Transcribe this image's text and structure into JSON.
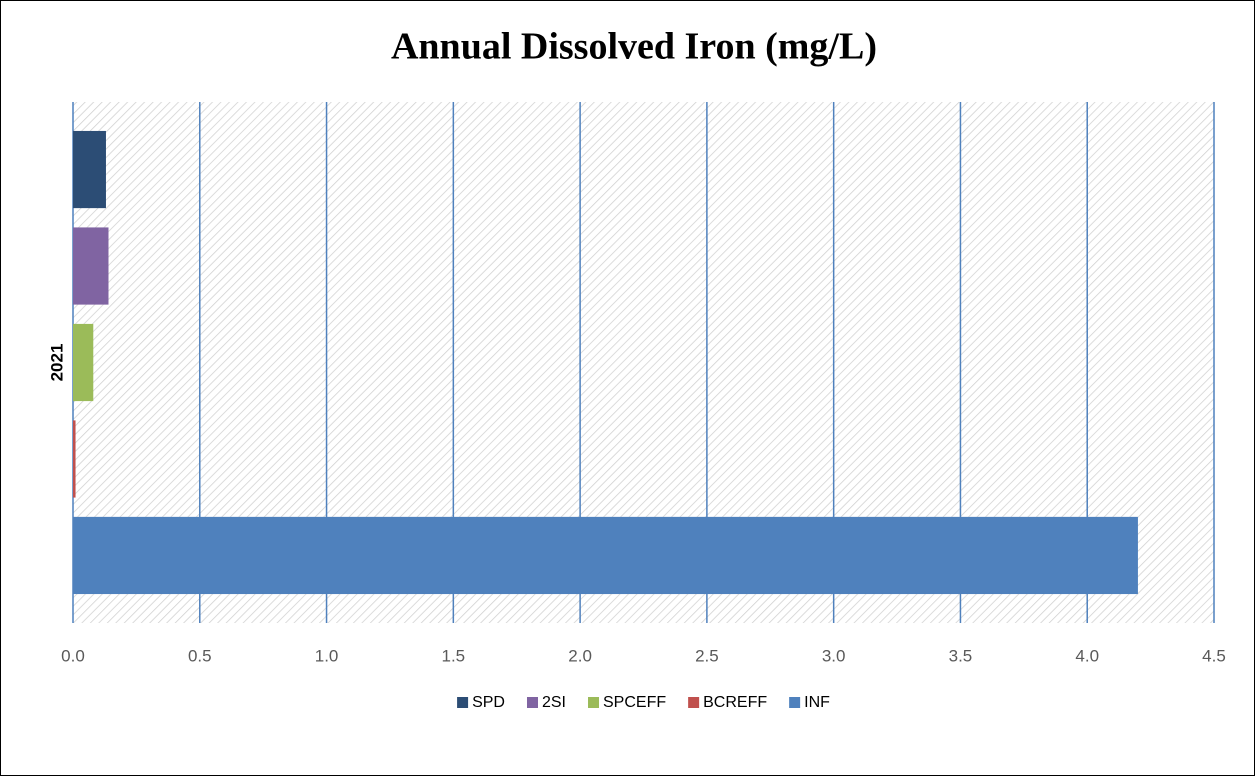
{
  "chart_data": {
    "type": "bar",
    "orientation": "horizontal",
    "title": "Annual Dissolved Iron (mg/L)",
    "categories": [
      "2021"
    ],
    "series": [
      {
        "name": "SPD",
        "color": "#2c4d75",
        "values": [
          0.13
        ]
      },
      {
        "name": "2SI",
        "color": "#8064a2",
        "values": [
          0.14
        ]
      },
      {
        "name": "SPCEFF",
        "color": "#9bbb59",
        "values": [
          0.08
        ]
      },
      {
        "name": "BCREFF",
        "color": "#c0504d",
        "values": [
          0.01
        ]
      },
      {
        "name": "INF",
        "color": "#4f81bd",
        "values": [
          4.2
        ]
      }
    ],
    "xlim": [
      0,
      4.5
    ],
    "xticks": [
      {
        "value": 0,
        "label": "0.0"
      },
      0.5,
      {
        "value": 1,
        "label": "1.0"
      },
      1.5,
      {
        "value": 2,
        "label": "2.0"
      },
      2.5,
      {
        "value": 3,
        "label": "3.0"
      },
      3.5,
      {
        "value": 4,
        "label": "4.0"
      },
      4.5
    ],
    "grid": true,
    "grid_color": "#4f81bd",
    "legend": "bottom"
  }
}
